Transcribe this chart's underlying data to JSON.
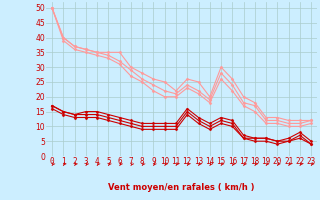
{
  "xlabel": "Vent moyen/en rafales ( km/h )",
  "background_color": "#cceeff",
  "grid_color": "#aacccc",
  "x": [
    0,
    1,
    2,
    3,
    4,
    5,
    6,
    7,
    8,
    9,
    10,
    11,
    12,
    13,
    14,
    15,
    16,
    17,
    18,
    19,
    20,
    21,
    22,
    23
  ],
  "ylim": [
    0,
    52
  ],
  "xlim": [
    -0.5,
    23.5
  ],
  "series_light": [
    [
      50,
      40,
      37,
      36,
      35,
      35,
      35,
      30,
      28,
      26,
      25,
      22,
      26,
      25,
      20,
      30,
      26,
      20,
      18,
      13,
      13,
      12,
      12,
      12
    ],
    [
      50,
      40,
      37,
      36,
      35,
      34,
      32,
      29,
      26,
      24,
      22,
      21,
      24,
      22,
      19,
      28,
      24,
      18,
      17,
      12,
      12,
      11,
      11,
      12
    ],
    [
      50,
      39,
      36,
      35,
      34,
      33,
      31,
      27,
      25,
      22,
      20,
      20,
      23,
      21,
      18,
      26,
      22,
      17,
      15,
      11,
      11,
      10,
      10,
      11
    ]
  ],
  "series_dark": [
    [
      17,
      15,
      14,
      15,
      15,
      14,
      13,
      12,
      11,
      11,
      11,
      11,
      16,
      13,
      11,
      13,
      12,
      7,
      6,
      6,
      5,
      6,
      8,
      5
    ],
    [
      17,
      15,
      14,
      14,
      14,
      13,
      12,
      11,
      10,
      10,
      10,
      10,
      15,
      12,
      10,
      12,
      11,
      6,
      6,
      6,
      5,
      5,
      7,
      4
    ],
    [
      16,
      14,
      13,
      13,
      13,
      12,
      11,
      10,
      9,
      9,
      9,
      9,
      14,
      11,
      9,
      11,
      10,
      6,
      5,
      5,
      4,
      5,
      6,
      4
    ]
  ],
  "light_color": "#ff9999",
  "dark_color": "#cc0000",
  "marker": "D",
  "markersize": 1.5,
  "linewidth": 0.8,
  "yticks": [
    0,
    5,
    10,
    15,
    20,
    25,
    30,
    35,
    40,
    45,
    50
  ],
  "tick_fontsize": 5.5,
  "xlabel_fontsize": 6,
  "xlabel_color": "#cc0000"
}
